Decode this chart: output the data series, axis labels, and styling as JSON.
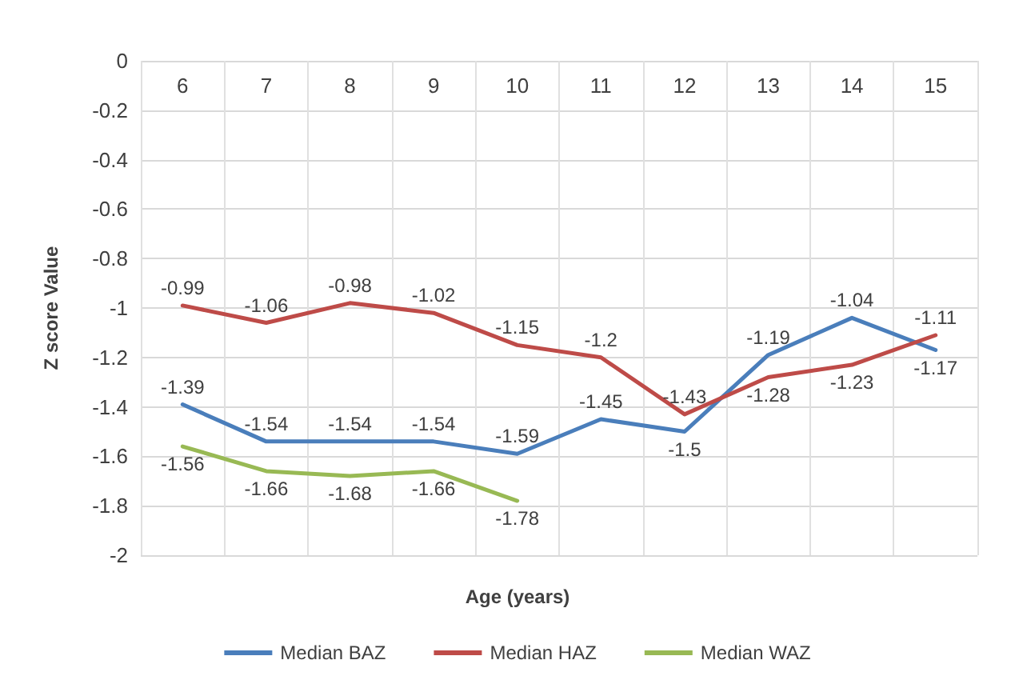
{
  "chart_data": {
    "type": "line",
    "xlabel": "Age (years)",
    "ylabel": "Z score Value",
    "categories": [
      "6",
      "7",
      "8",
      "9",
      "10",
      "11",
      "12",
      "13",
      "14",
      "15"
    ],
    "series": [
      {
        "name": "Median BAZ",
        "color": "#4a7ebb",
        "values": [
          -1.39,
          -1.54,
          -1.54,
          -1.54,
          -1.59,
          -1.45,
          -1.5,
          -1.19,
          -1.04,
          -1.17
        ]
      },
      {
        "name": "Median HAZ",
        "color": "#be4b48",
        "values": [
          -0.99,
          -1.06,
          -0.98,
          -1.02,
          -1.15,
          -1.2,
          -1.43,
          -1.28,
          -1.23,
          -1.11
        ]
      },
      {
        "name": "Median WAZ",
        "color": "#98b954",
        "values": [
          -1.56,
          -1.66,
          -1.68,
          -1.66,
          -1.78,
          null,
          null,
          null,
          null,
          null
        ]
      }
    ],
    "ylim": [
      -2,
      0
    ],
    "yticks": [
      0,
      -0.2,
      -0.4,
      -0.6,
      -0.8,
      -1,
      -1.2,
      -1.4,
      -1.6,
      -1.8,
      -2
    ],
    "grid": true,
    "legend": "bottom",
    "data_labels": true,
    "marker": "none",
    "line_style": "solid"
  }
}
